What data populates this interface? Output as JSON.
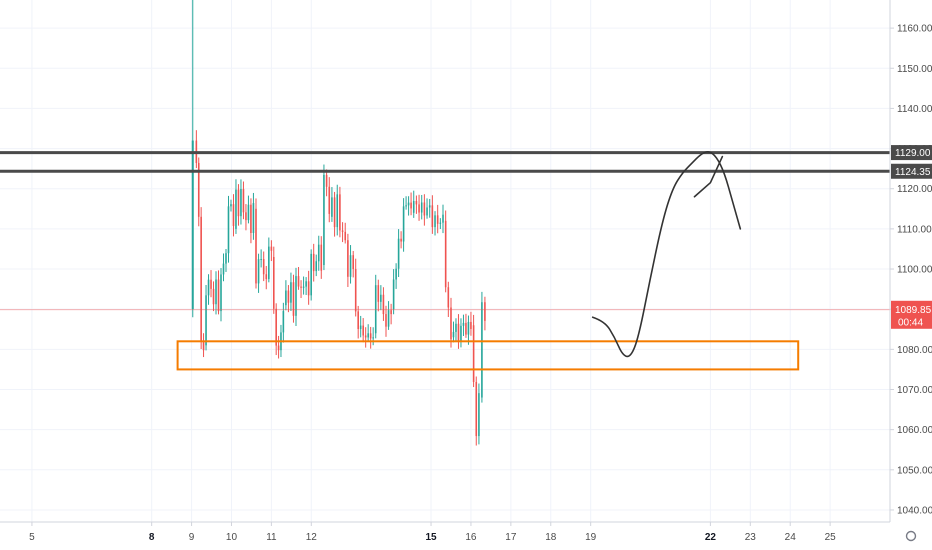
{
  "colors": {
    "up": "#26a69a",
    "down": "#ef5350",
    "grid": "#f0f3fa",
    "axis_line": "#d1d4dc",
    "resistance_line": "#4a4a4a",
    "support_box": "#f57c00",
    "current_price_bg": "#ef5350",
    "projection": "#333333"
  },
  "chart_data": {
    "type": "candlestick",
    "ylim": [
      1037,
      1167
    ],
    "xlim": [
      4.2,
      26.5
    ],
    "grid": true,
    "y_ticks": [
      1040,
      1050,
      1060,
      1070,
      1080,
      1090,
      1100,
      1110,
      1120,
      1130,
      1140,
      1150,
      1160
    ],
    "y_tick_labels": [
      "1040.00",
      "1050.00",
      "1060.00",
      "1070.00",
      "1080.00",
      "1090.00",
      "1100.00",
      "1110.00",
      "1120.00",
      "1130.00",
      "1140.00",
      "1150.00",
      "1160.00"
    ],
    "x_ticks": [
      {
        "x": 5,
        "label": "5",
        "bold": false
      },
      {
        "x": 8,
        "label": "8",
        "bold": true
      },
      {
        "x": 9,
        "label": "9",
        "bold": false
      },
      {
        "x": 10,
        "label": "10",
        "bold": false
      },
      {
        "x": 11,
        "label": "11",
        "bold": false
      },
      {
        "x": 12,
        "label": "12",
        "bold": false
      },
      {
        "x": 15,
        "label": "15",
        "bold": true
      },
      {
        "x": 16,
        "label": "16",
        "bold": false
      },
      {
        "x": 17,
        "label": "17",
        "bold": false
      },
      {
        "x": 18,
        "label": "18",
        "bold": false
      },
      {
        "x": 19,
        "label": "19",
        "bold": false
      },
      {
        "x": 22,
        "label": "22",
        "bold": true
      },
      {
        "x": 23,
        "label": "23",
        "bold": false
      },
      {
        "x": 24,
        "label": "24",
        "bold": false
      },
      {
        "x": 25,
        "label": "25",
        "bold": false
      }
    ],
    "resistance_levels": [
      {
        "value": 1129.0,
        "label": "1129.00"
      },
      {
        "value": 1124.35,
        "label": "1124.35"
      }
    ],
    "current_price": {
      "value": 1089.85,
      "label": "1089.85",
      "countdown": "00:44"
    },
    "support_zone": {
      "x_start": 8.65,
      "x_end": 24.2,
      "y_low": 1075.0,
      "y_high": 1082.0
    },
    "projection_path": [
      [
        19.05,
        1088
      ],
      [
        19.35,
        1087
      ],
      [
        19.6,
        1083
      ],
      [
        19.8,
        1078.5
      ],
      [
        20.0,
        1078
      ],
      [
        20.2,
        1083
      ],
      [
        20.5,
        1098
      ],
      [
        20.8,
        1112
      ],
      [
        21.05,
        1120
      ],
      [
        21.3,
        1124
      ],
      [
        21.55,
        1126.5
      ],
      [
        21.75,
        1128.5
      ],
      [
        21.95,
        1129.5
      ],
      [
        22.15,
        1128
      ],
      [
        22.35,
        1124
      ],
      [
        22.55,
        1117
      ],
      [
        22.75,
        1110
      ]
    ],
    "arrow_head": [
      [
        21.6,
        1118
      ],
      [
        22.0,
        1121.5
      ],
      [
        22.3,
        1128
      ]
    ],
    "segments": [
      {
        "x0": 9.0,
        "x1": 9.06,
        "open": 1090,
        "close": 1132,
        "high": 1168,
        "low": 1088
      },
      {
        "x0": 9.06,
        "x1": 9.3,
        "points": [
          1132,
          1121,
          1128,
          1110,
          1112,
          1095,
          1082,
          1079,
          1081
        ]
      },
      {
        "x0": 9.3,
        "x1": 10.05,
        "points": [
          1081,
          1090,
          1100,
          1095,
          1098,
          1092,
          1090,
          1097,
          1094,
          1088,
          1098,
          1103,
          1100,
          1106,
          1113,
          1120,
          1116,
          1110
        ]
      },
      {
        "x0": 10.05,
        "x1": 10.55,
        "points": [
          1110,
          1122,
          1117,
          1113,
          1119,
          1114,
          1117,
          1111,
          1116,
          1113,
          1109,
          1115
        ]
      },
      {
        "x0": 10.55,
        "x1": 11.0,
        "points": [
          1115,
          1103,
          1097,
          1103,
          1101,
          1099,
          1104,
          1100,
          1098,
          1103,
          1097,
          1101,
          1107,
          1099,
          1103
        ]
      },
      {
        "x0": 11.0,
        "x1": 11.3,
        "points": [
          1103,
          1094,
          1085,
          1083,
          1080,
          1079,
          1082,
          1086,
          1091
        ]
      },
      {
        "x0": 11.3,
        "x1": 12.25,
        "points": [
          1091,
          1093,
          1097,
          1092,
          1097,
          1094,
          1089,
          1095,
          1099,
          1094,
          1099,
          1096,
          1092,
          1100,
          1097,
          1092,
          1098,
          1103,
          1099,
          1104,
          1101,
          1107,
          1104,
          1101
        ]
      },
      {
        "x0": 12.25,
        "x1": 12.45,
        "points": [
          1101,
          1112,
          1122,
          1126,
          1122,
          1115,
          1113
        ]
      },
      {
        "x0": 12.45,
        "x1": 13.05,
        "points": [
          1113,
          1119,
          1115,
          1110,
          1117,
          1112,
          1108,
          1110,
          1106,
          1101,
          1097,
          1105,
          1100
        ]
      },
      {
        "x0": 13.05,
        "x1": 13.55,
        "points": [
          1100,
          1092,
          1086,
          1083,
          1088,
          1084,
          1081,
          1083,
          1086,
          1083,
          1080,
          1084
        ]
      },
      {
        "x0": 13.55,
        "x1": 14.0,
        "points": [
          1084,
          1092,
          1097,
          1093,
          1096,
          1091,
          1088,
          1091,
          1086,
          1089,
          1087,
          1090
        ]
      },
      {
        "x0": 14.0,
        "x1": 14.5,
        "points": [
          1090,
          1096,
          1102,
          1099,
          1105,
          1110,
          1108,
          1115,
          1113,
          1117,
          1115,
          1118,
          1114
        ]
      },
      {
        "x0": 14.5,
        "x1": 15.3,
        "points": [
          1114,
          1117,
          1115,
          1118,
          1113,
          1115,
          1117,
          1114,
          1116,
          1112,
          1115,
          1113,
          1116,
          1111,
          1114,
          1112,
          1115,
          1110,
          1113,
          1111,
          1112
        ]
      },
      {
        "x0": 15.3,
        "x1": 15.5,
        "points": [
          1112,
          1104,
          1097,
          1092,
          1089,
          1084,
          1083
        ]
      },
      {
        "x0": 15.5,
        "x1": 16.0,
        "points": [
          1083,
          1085,
          1084,
          1086,
          1083,
          1085,
          1087,
          1084,
          1086,
          1085,
          1086
        ]
      },
      {
        "x0": 16.0,
        "x1": 16.2,
        "points": [
          1086,
          1078,
          1067,
          1059,
          1062,
          1068
        ]
      },
      {
        "x0": 16.2,
        "x1": 16.35,
        "points": [
          1068,
          1078,
          1086,
          1092,
          1089,
          1087,
          1088
        ]
      }
    ]
  }
}
